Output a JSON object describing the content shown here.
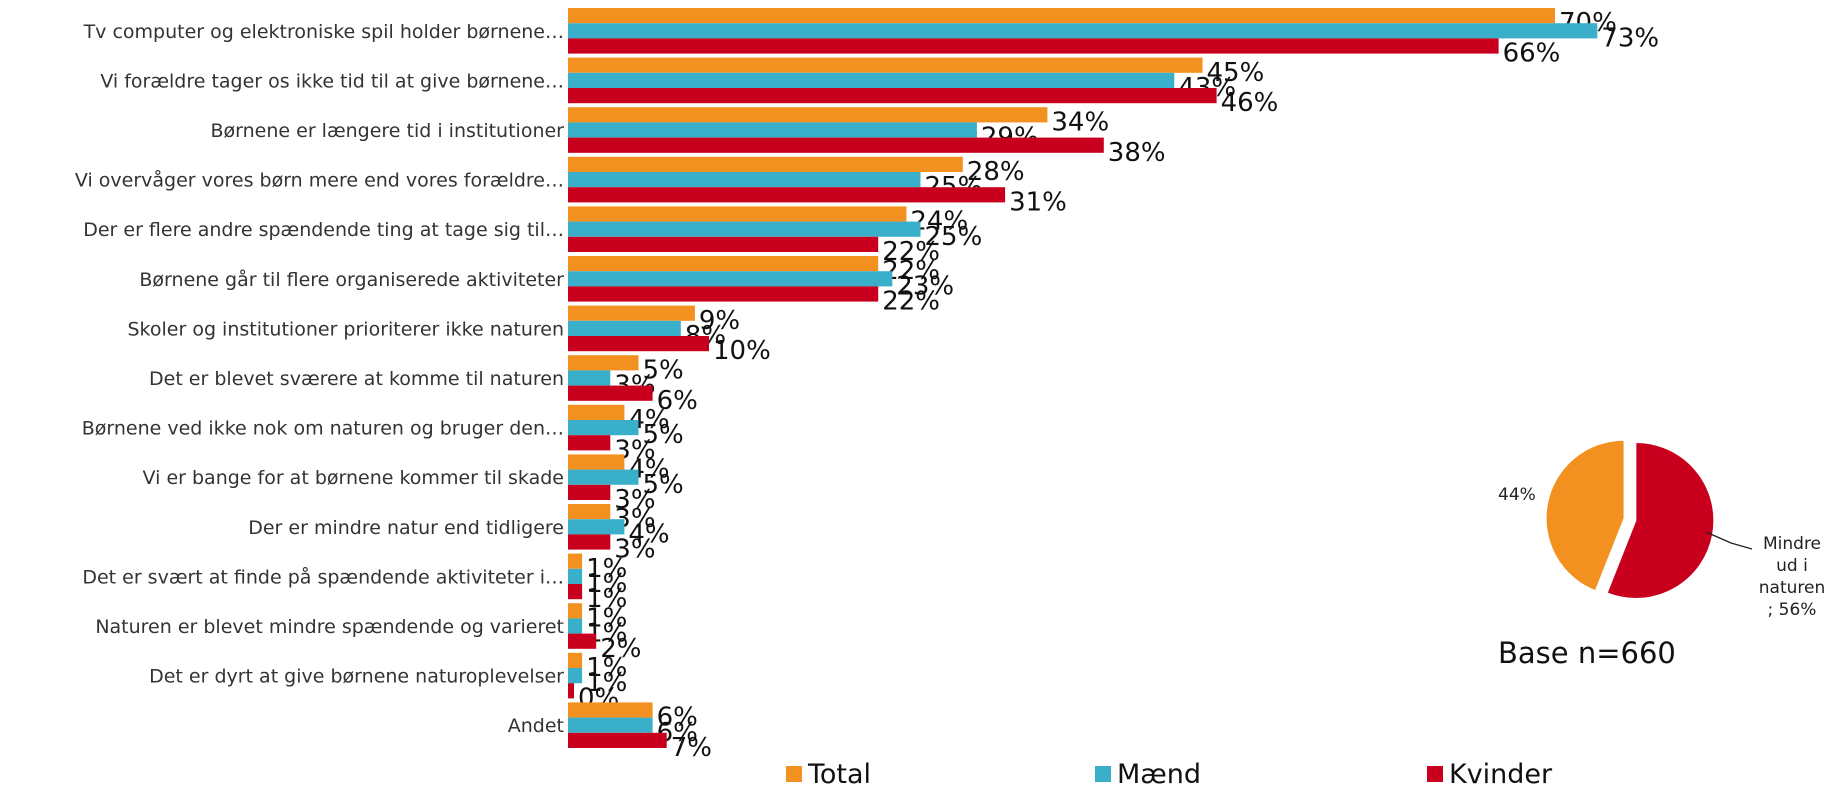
{
  "chart_data": [
    {
      "type": "bar",
      "orientation": "horizontal",
      "categories": [
        "Tv computer og elektroniske spil holder børnene…",
        "Vi forældre tager os ikke tid til at give børnene…",
        "Børnene er længere tid i institutioner",
        "Vi overvåger vores børn mere end vores forældre…",
        "Der er flere andre spændende ting at tage sig til…",
        "Børnene går til flere organiserede aktiviteter",
        "Skoler og institutioner prioriterer ikke naturen",
        "Det er blevet sværere at komme til naturen",
        "Børnene ved ikke nok om naturen og bruger den…",
        "Vi er bange for at børnene kommer til skade",
        "Der er mindre natur end tidligere",
        "Det er svært at finde på spændende aktiviteter i…",
        "Naturen er blevet mindre spændende og varieret",
        "Det er dyrt at give børnene naturoplevelser",
        "Andet"
      ],
      "series": [
        {
          "name": "Total",
          "color": "#f39120",
          "values": [
            70,
            45,
            34,
            28,
            24,
            22,
            9,
            5,
            4,
            4,
            3,
            1,
            1,
            1,
            6
          ]
        },
        {
          "name": "Mænd",
          "color": "#3aafc9",
          "values": [
            73,
            43,
            29,
            25,
            25,
            23,
            8,
            3,
            5,
            5,
            4,
            1,
            1,
            1,
            6
          ]
        },
        {
          "name": "Kvinder",
          "color": "#c8001e",
          "values": [
            66,
            46,
            38,
            31,
            22,
            22,
            10,
            6,
            3,
            3,
            3,
            1,
            2,
            0,
            7
          ]
        }
      ],
      "value_suffix": "%",
      "xlim": [
        0,
        74
      ],
      "grid": false,
      "legend_position": "bottom",
      "legend": [
        "Total",
        "Mænd",
        "Kvinder"
      ]
    },
    {
      "type": "pie",
      "slices": [
        {
          "label": "",
          "value": 44,
          "display": "44%",
          "color": "#f39120"
        },
        {
          "label": "Mindre ud i naturen",
          "value": 56,
          "display": "Mindre ud i naturen ; 56%",
          "color": "#c8001e"
        }
      ],
      "label_lines": [
        "Mindre",
        "ud i",
        "naturen",
        "; 56%"
      ],
      "base_text": "Base n=660"
    }
  ]
}
